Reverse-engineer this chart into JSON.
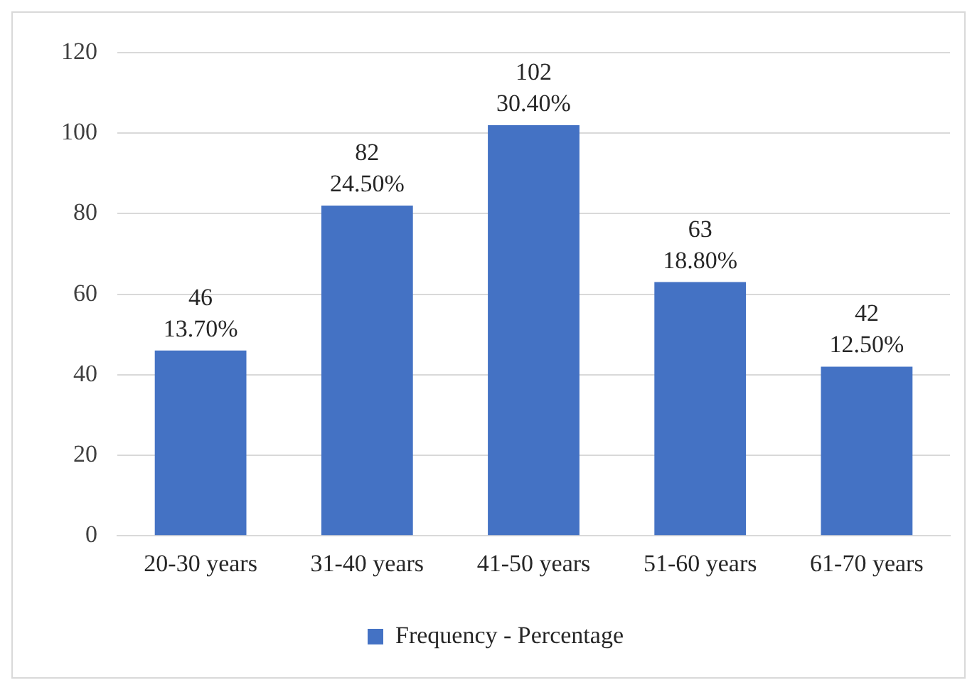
{
  "chart_data": {
    "type": "bar",
    "categories": [
      "20-30 years",
      "31-40 years",
      "41-50 years",
      "51-60 years",
      "61-70 years"
    ],
    "series": [
      {
        "name": "Frequency - Percentage",
        "color": "#4472c4",
        "values": [
          46,
          82,
          102,
          63,
          42
        ],
        "value_labels": [
          "46\n13.70%",
          "82\n24.50%",
          "102\n30.40%",
          "63\n18.80%",
          "42\n12.50%"
        ]
      }
    ],
    "ylim": [
      0,
      120
    ],
    "yticks": [
      0,
      20,
      40,
      60,
      80,
      100,
      120
    ],
    "grid": "y",
    "legend": "bottom"
  }
}
